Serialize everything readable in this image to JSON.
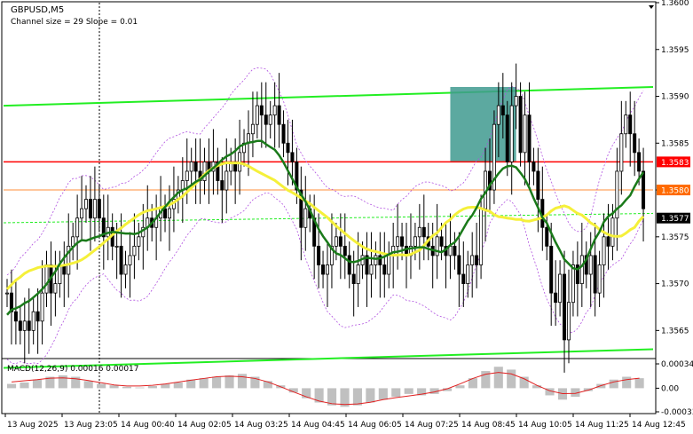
{
  "header": {
    "symbol": "GBPUSD,M5",
    "indicator": "Channel size = 29 Slope = 0.01"
  },
  "macd": {
    "label": "MACD(12,26,9) 0.00016 0.00017",
    "scale": [
      "0.00034",
      "0.00",
      "-0.00033"
    ]
  },
  "price_axis": {
    "ticks": [
      "1.3600",
      "1.3595",
      "1.3590",
      "1.3585",
      "1.3580",
      "1.3575",
      "1.3570",
      "1.3565"
    ],
    "markers": [
      {
        "label": "1.3583",
        "color": "#ff0000",
        "text_color": "#ffffff"
      },
      {
        "label": "1.3580",
        "color": "#ff6a00",
        "text_color": "#ffffff"
      },
      {
        "label": "1.3577",
        "color": "#000000",
        "text_color": "#ffffff"
      }
    ]
  },
  "time_axis": {
    "labels": [
      "13 Aug 2025",
      "13 Aug 23:05",
      "14 Aug 00:40",
      "14 Aug 02:05",
      "14 Aug 03:25",
      "14 Aug 04:45",
      "14 Aug 06:05",
      "14 Aug 07:25",
      "14 Aug 08:45",
      "14 Aug 10:05",
      "14 Aug 11:25",
      "14 Aug 12:45"
    ]
  },
  "chart_data": {
    "type": "candlestick",
    "symbol": "GBPUSD",
    "timeframe": "M5",
    "ylim": [
      1.3562,
      1.36
    ],
    "levels": {
      "resistance": 1.3583,
      "current_orange": 1.358,
      "last_price": 1.3577
    },
    "channel": {
      "upper": [
        1.3589,
        1.3591
      ],
      "lower": [
        1.3561,
        1.3563
      ]
    },
    "closes": [
      1.3569,
      1.3567,
      1.3566,
      1.3565,
      1.3566,
      1.3565,
      1.3567,
      1.3566,
      1.3569,
      1.3572,
      1.3569,
      1.357,
      1.3572,
      1.3571,
      1.3574,
      1.3575,
      1.3577,
      1.3578,
      1.3579,
      1.3577,
      1.3579,
      1.3577,
      1.3575,
      1.3576,
      1.3574,
      1.3574,
      1.3571,
      1.3572,
      1.3573,
      1.3574,
      1.3575,
      1.3576,
      1.3577,
      1.3576,
      1.3577,
      1.3578,
      1.3577,
      1.3578,
      1.3579,
      1.358,
      1.3581,
      1.3582,
      1.3583,
      1.3582,
      1.3581,
      1.3583,
      1.3582,
      1.3583,
      1.3581,
      1.358,
      1.3582,
      1.3583,
      1.3582,
      1.3584,
      1.3585,
      1.3586,
      1.3587,
      1.3589,
      1.3588,
      1.3587,
      1.3588,
      1.3589,
      1.3587,
      1.3585,
      1.3584,
      1.3583,
      1.358,
      1.3576,
      1.3578,
      1.3577,
      1.3574,
      1.3572,
      1.3571,
      1.3572,
      1.3574,
      1.3575,
      1.3574,
      1.3573,
      1.3571,
      1.357,
      1.3572,
      1.3573,
      1.3571,
      1.3572,
      1.3573,
      1.3572,
      1.3571,
      1.3573,
      1.3574,
      1.3575,
      1.3574,
      1.3573,
      1.3574,
      1.3575,
      1.3576,
      1.3575,
      1.3574,
      1.3573,
      1.3575,
      1.3574,
      1.3573,
      1.3574,
      1.3573,
      1.3571,
      1.357,
      1.3572,
      1.3573,
      1.3572,
      1.3578,
      1.3582,
      1.358,
      1.3587,
      1.3589,
      1.3588,
      1.3583,
      1.3589,
      1.359,
      1.3584,
      1.3588,
      1.3583,
      1.3582,
      1.3579,
      1.3576,
      1.3574,
      1.3569,
      1.3568,
      1.3571,
      1.3564,
      1.3568,
      1.3572,
      1.357,
      1.3573,
      1.3571,
      1.3573,
      1.3569,
      1.3572,
      1.3575,
      1.3574,
      1.3577,
      1.3582,
      1.3586,
      1.3588,
      1.3586,
      1.3584,
      1.3582,
      1.3578
    ],
    "ma_green": [
      1.357,
      1.3573,
      1.3582,
      1.3586,
      1.3574,
      1.3576,
      1.358,
      1.3577
    ],
    "ma_yellow": [
      1.357,
      1.3571,
      1.3578,
      1.3582,
      1.3575,
      1.3577,
      1.3577,
      1.3579
    ],
    "macd_hist": [
      6e-05,
      8e-05,
      0.00012,
      0.00016,
      0.00018,
      0.00016,
      0.0001,
      6e-05,
      4e-05,
      2e-05,
      1e-05,
      3e-05,
      6e-05,
      8e-05,
      0.00012,
      0.00014,
      0.00016,
      0.00018,
      0.0002,
      0.00016,
      0.0001,
      4e-05,
      -6e-05,
      -0.00014,
      -0.0002,
      -0.00024,
      -0.00026,
      -0.00024,
      -0.0002,
      -0.00016,
      -0.00012,
      -8e-05,
      -0.0001,
      -8e-05,
      -4e-05,
      4e-05,
      0.00014,
      0.00024,
      0.0003,
      0.00026,
      0.00016,
      4e-05,
      -0.0001,
      -0.00016,
      -0.00012,
      -4e-05,
      6e-05,
      0.00012,
      0.00016,
      0.00014
    ]
  }
}
